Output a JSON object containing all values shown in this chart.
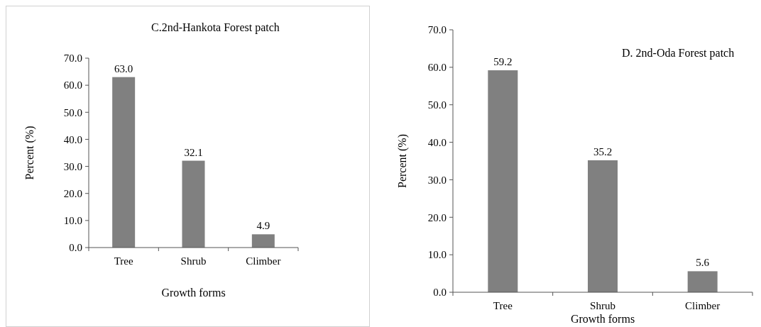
{
  "chart_data": [
    {
      "type": "bar",
      "title": "C.2nd-Hankota  Forest patch",
      "xlabel": "Growth forms",
      "ylabel": "Percent (%)",
      "categories": [
        "Tree",
        "Shrub",
        "Climber"
      ],
      "values": [
        63.0,
        32.1,
        4.9
      ],
      "value_labels": [
        "63.0",
        "32.1",
        "4.9"
      ],
      "color": "#808080",
      "ylim": [
        0,
        70
      ],
      "yticks": [
        {
          "value": 0,
          "label": "0.0"
        },
        {
          "value": 10,
          "label": "10.0"
        },
        {
          "value": 20,
          "label": "20.0"
        },
        {
          "value": 30,
          "label": "30.0"
        },
        {
          "value": 40,
          "label": "40.0"
        },
        {
          "value": 50,
          "label": "50.0"
        },
        {
          "value": 60,
          "label": "60.0"
        },
        {
          "value": 70,
          "label": "70.0"
        }
      ],
      "grid": false,
      "legend": false
    },
    {
      "type": "bar",
      "title": "D. 2nd-Oda Forest patch",
      "xlabel": "Growth forms",
      "ylabel": "Percent (%)",
      "categories": [
        "Tree",
        "Shrub",
        "Climber"
      ],
      "values": [
        59.2,
        35.2,
        5.6
      ],
      "value_labels": [
        "59.2",
        "35.2",
        "5.6"
      ],
      "color": "#808080",
      "ylim": [
        0,
        70
      ],
      "yticks": [
        {
          "value": 0,
          "label": "0.0"
        },
        {
          "value": 10,
          "label": "10.0"
        },
        {
          "value": 20,
          "label": "20.0"
        },
        {
          "value": 30,
          "label": "30.0"
        },
        {
          "value": 40,
          "label": "40.0"
        },
        {
          "value": 50,
          "label": "50.0"
        },
        {
          "value": 60,
          "label": "60.0"
        },
        {
          "value": 70,
          "label": "70.0"
        }
      ],
      "grid": false,
      "legend": false
    }
  ]
}
